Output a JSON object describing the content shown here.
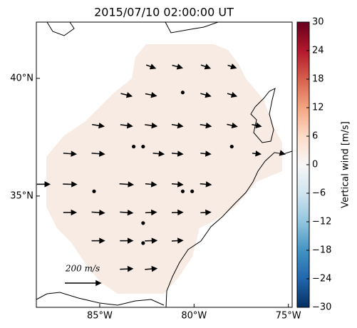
{
  "chart_data": {
    "type": "quiver",
    "title": "2015/07/10 02:00:00 UT",
    "xlim": [
      -88.36,
      -74.8
    ],
    "ylim": [
      30.27,
      42.39
    ],
    "xticks": [
      {
        "value": -85,
        "label": "85°W"
      },
      {
        "value": -80,
        "label": "80°W"
      },
      {
        "value": -75,
        "label": "75°W"
      }
    ],
    "yticks": [
      {
        "value": 35,
        "label": "35°N"
      },
      {
        "value": 40,
        "label": "40°N"
      }
    ],
    "vectors": {
      "lon": [
        -82.3,
        -80.9,
        -79.4,
        -78.0,
        -83.6,
        -82.3,
        -79.4,
        -78.0,
        -80.6,
        -85.1,
        -83.6,
        -82.3,
        -80.9,
        -79.4,
        -78.0,
        -76.7,
        -86.6,
        -85.1,
        -81.9,
        -80.9,
        -79.4,
        -76.7,
        -75.3,
        -83.2,
        -82.7,
        -78.0,
        -88.0,
        -86.6,
        -83.6,
        -82.3,
        -80.9,
        -79.4,
        -85.3,
        -80.6,
        -80.1,
        -86.6,
        -85.1,
        -83.6,
        -82.3,
        -80.9,
        -79.4,
        -82.7,
        -85.1,
        -83.6,
        -82.3,
        -80.9,
        -82.7,
        -83.6,
        -82.3
      ],
      "lat": [
        40.5,
        40.5,
        40.5,
        40.5,
        39.3,
        39.3,
        39.3,
        39.3,
        39.4,
        38.0,
        38.0,
        38.0,
        38.0,
        38.0,
        38.0,
        38.0,
        36.8,
        36.8,
        36.8,
        36.8,
        36.8,
        36.8,
        36.8,
        37.1,
        37.1,
        37.1,
        35.5,
        35.5,
        35.5,
        35.5,
        35.5,
        35.5,
        35.2,
        35.2,
        35.2,
        34.3,
        34.3,
        34.3,
        34.3,
        34.3,
        34.3,
        33.85,
        33.1,
        33.1,
        33.1,
        33.1,
        33.0,
        31.9,
        31.9
      ],
      "u": [
        50,
        55,
        50,
        45,
        60,
        60,
        55,
        50,
        0,
        65,
        65,
        65,
        60,
        60,
        55,
        50,
        70,
        70,
        60,
        60,
        55,
        45,
        20,
        0,
        0,
        0,
        70,
        75,
        75,
        60,
        60,
        60,
        0,
        0,
        0,
        70,
        70,
        70,
        60,
        60,
        55,
        0,
        70,
        70,
        65,
        60,
        0,
        70,
        65
      ],
      "v": [
        -18,
        -15,
        -18,
        -15,
        -15,
        -12,
        -15,
        -15,
        0,
        -10,
        -8,
        -8,
        -10,
        -10,
        -12,
        -10,
        -5,
        -5,
        -5,
        -5,
        -5,
        -5,
        -5,
        0,
        0,
        0,
        0,
        -2,
        -5,
        -5,
        -5,
        -5,
        0,
        0,
        0,
        0,
        -5,
        -5,
        3,
        2,
        3,
        0,
        0,
        0,
        2,
        3,
        0,
        3,
        5
      ]
    },
    "key": {
      "value": 200,
      "label": "200 m/s"
    },
    "colorbar_label": "Vertical wind [m/s]",
    "clim": [
      -30,
      30
    ],
    "cticks": [
      30,
      24,
      18,
      12,
      6,
      0,
      {
        "value": -6,
        "label": "−6"
      },
      {
        "value": -12,
        "label": "−12"
      },
      {
        "value": -18,
        "label": "−18"
      },
      {
        "value": -24,
        "label": "−24"
      },
      {
        "value": -30,
        "label": "−30"
      }
    ]
  }
}
